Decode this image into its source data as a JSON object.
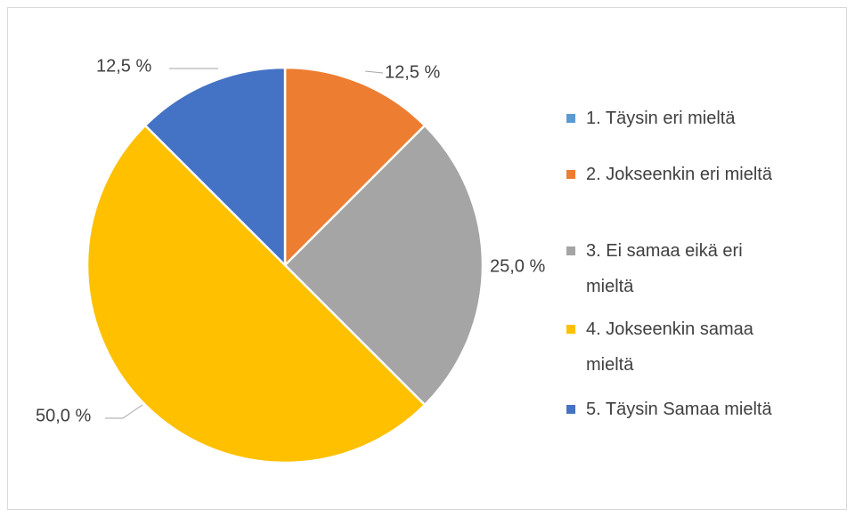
{
  "chart_data": {
    "type": "pie",
    "categories": [
      "1. Täysin eri mieltä",
      "2. Jokseenkin eri mieltä",
      "3. Ei samaa eikä eri mieltä",
      "4. Jokseenkin samaa mieltä",
      "5. Täysin Samaa mieltä"
    ],
    "values": [
      0,
      12.5,
      25,
      50,
      12.5
    ],
    "value_labels": [
      null,
      "12,5 %",
      "25,0 %",
      "50,0 %",
      "12,5 %"
    ],
    "colors": [
      "#5b9bd5",
      "#ed7d31",
      "#a5a5a5",
      "#ffc000",
      "#4472c4"
    ],
    "legend": "right"
  }
}
